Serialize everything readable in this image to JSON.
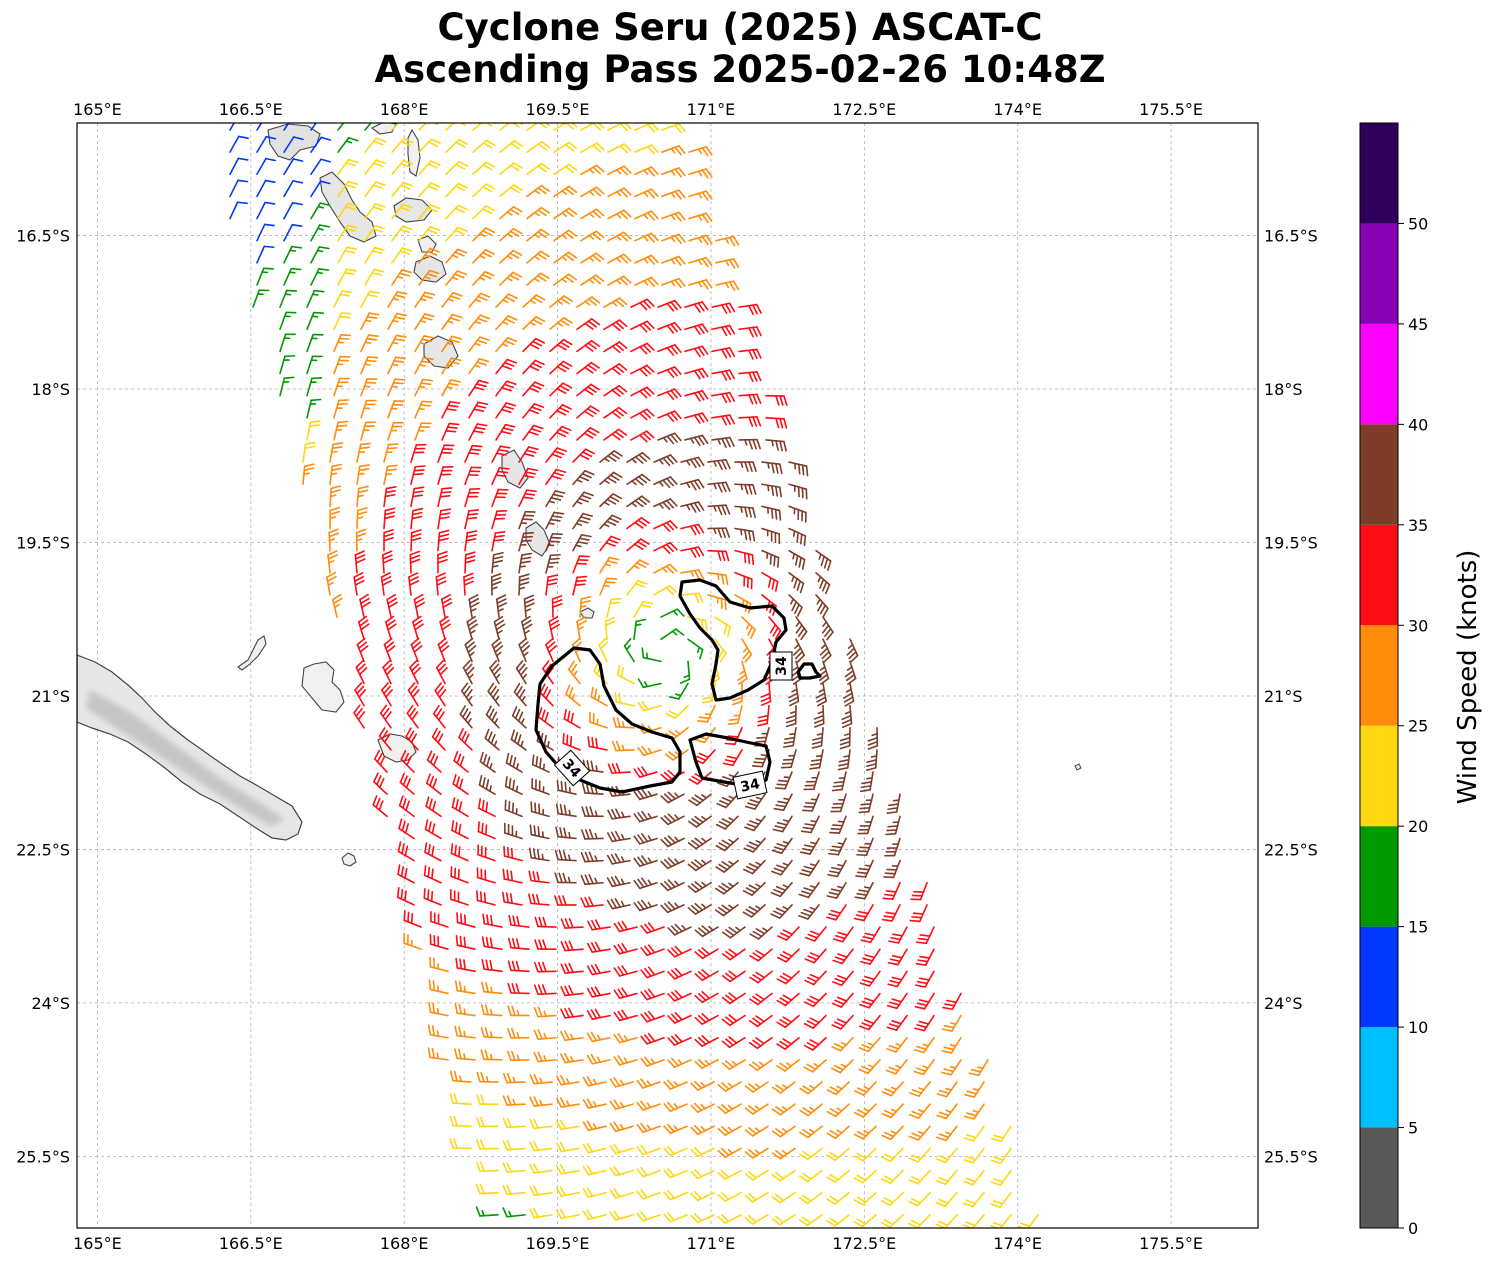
{
  "title": {
    "line1": "Cyclone Seru (2025) ASCAT-C",
    "line2": "Ascending Pass 2025-02-26 10:48Z"
  },
  "map": {
    "lon_range": [
      164.8,
      176.35
    ],
    "lat_range": [
      -26.2,
      -15.4
    ],
    "lon_ticks": [
      165,
      166.5,
      168,
      169.5,
      171,
      172.5,
      174,
      175.5
    ],
    "lon_tick_labels": [
      "165°E",
      "166.5°E",
      "168°E",
      "169.5°E",
      "171°E",
      "172.5°E",
      "174°E",
      "175.5°E"
    ],
    "lat_ticks": [
      -16.5,
      -18,
      -19.5,
      -21,
      -22.5,
      -24,
      -25.5
    ],
    "lat_tick_labels": [
      "16.5°S",
      "18°S",
      "19.5°S",
      "21°S",
      "22.5°S",
      "24°S",
      "25.5°S"
    ],
    "gridlines": true,
    "cyclone_center": {
      "lon": 170.55,
      "lat": -20.6
    },
    "contour_value": "34",
    "contour_labels": [
      "34",
      "34",
      "34"
    ]
  },
  "colorbar": {
    "label": "Wind Speed (knots)",
    "ticks": [
      "0",
      "5",
      "10",
      "15",
      "20",
      "25",
      "30",
      "35",
      "40",
      "45",
      "50"
    ],
    "bins": [
      {
        "from": 0,
        "to": 5,
        "color": "#595959"
      },
      {
        "from": 5,
        "to": 10,
        "color": "#00bfff"
      },
      {
        "from": 10,
        "to": 15,
        "color": "#0038ff"
      },
      {
        "from": 15,
        "to": 20,
        "color": "#009900"
      },
      {
        "from": 20,
        "to": 25,
        "color": "#ffd710"
      },
      {
        "from": 25,
        "to": 30,
        "color": "#ff8c0a"
      },
      {
        "from": 30,
        "to": 35,
        "color": "#ff0c14"
      },
      {
        "from": 35,
        "to": 40,
        "color": "#7f3c28"
      },
      {
        "from": 40,
        "to": 45,
        "color": "#ff00ff"
      },
      {
        "from": 45,
        "to": 50,
        "color": "#8a00b4"
      },
      {
        "from": 50,
        "to": 55,
        "color": "#2e0059"
      }
    ]
  }
}
